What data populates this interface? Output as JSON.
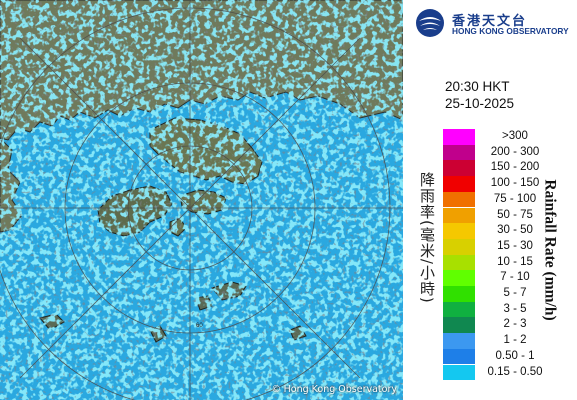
{
  "organization": {
    "name_zh": "香港天文台",
    "name_en": "HONG KONG OBSERVATORY"
  },
  "timestamp": {
    "time": "20:30 HKT",
    "date": "25-10-2025"
  },
  "map": {
    "copyright_symbol": "©",
    "copyright_text": "Hong Kong Observatory",
    "range_ring_label": "60",
    "colors": {
      "sea": "#2aa8e0",
      "land": "#6d7a5a",
      "light_rain": "#3fd2f5",
      "range_rings": "#4a4a4a"
    }
  },
  "legend": {
    "title_zh": "降雨率(毫米/小時)",
    "title_en": "Rainfall Rate (mm/h)",
    "ranges": [
      {
        "label": ">300",
        "color": "#ff00ff"
      },
      {
        "label": "200 - 300",
        "color": "#c0008c"
      },
      {
        "label": "150 - 200",
        "color": "#cc0033"
      },
      {
        "label": "100 - 150",
        "color": "#f00000"
      },
      {
        "label": "75 - 100",
        "color": "#f07000"
      },
      {
        "label": "50 - 75",
        "color": "#f0a000"
      },
      {
        "label": "30 - 50",
        "color": "#f5c800"
      },
      {
        "label": "15 - 30",
        "color": "#d8d000"
      },
      {
        "label": "10 - 15",
        "color": "#a8e000"
      },
      {
        "label": "7 - 10",
        "color": "#60ff00"
      },
      {
        "label": "5 - 7",
        "color": "#30e000"
      },
      {
        "label": "3 - 5",
        "color": "#10b040"
      },
      {
        "label": "2 - 3",
        "color": "#108850"
      },
      {
        "label": "1 - 2",
        "color": "#3c98f0"
      },
      {
        "label": "0.50 - 1",
        "color": "#1e7fe8"
      },
      {
        "label": "0.15 - 0.50",
        "color": "#14c8f0"
      }
    ]
  }
}
